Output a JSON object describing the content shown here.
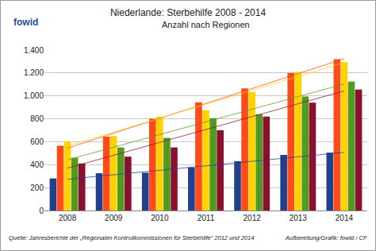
{
  "chart_data": {
    "type": "bar",
    "logo": "fowid",
    "title": "Niederlande: Sterbehilfe 2008 - 2014",
    "subtitle": "Anzahl nach Regionen",
    "source": "Quelle: Jahresberichte der „Regionalen Kontrollkommissionen für Sterbehilfe“ 2012 und 2014",
    "credit": "Aufbereitung/Grafik: fowid / CF",
    "categories": [
      "2008",
      "2009",
      "2010",
      "2011",
      "2012",
      "2013",
      "2014"
    ],
    "series": [
      {
        "color": "#1f3f8f",
        "values": [
          280,
          325,
          330,
          375,
          430,
          485,
          505
        ]
      },
      {
        "color": "#ff4a1a",
        "values": [
          565,
          645,
          800,
          945,
          1065,
          1200,
          1320
        ]
      },
      {
        "color": "#ffd200",
        "values": [
          605,
          650,
          820,
          875,
          1035,
          1210,
          1295
        ]
      },
      {
        "color": "#4f9a1f",
        "values": [
          460,
          550,
          635,
          805,
          840,
          995,
          1125
        ]
      },
      {
        "color": "#8b1030",
        "values": [
          410,
          470,
          550,
          700,
          820,
          940,
          1055
        ]
      }
    ],
    "ylim": [
      0,
      1400
    ],
    "yticks": [
      0,
      200,
      400,
      600,
      800,
      {
        "value": 1000,
        "label": "1.000"
      },
      {
        "value": 1200,
        "label": "1.200"
      },
      {
        "value": 1400,
        "label": "1.400"
      }
    ],
    "grid": true
  }
}
